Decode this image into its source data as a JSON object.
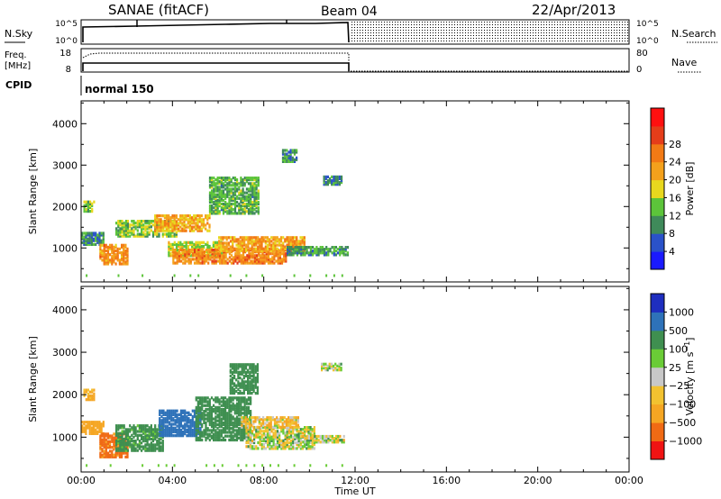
{
  "header": {
    "station": "SANAE (fitACF)",
    "beam": "Beam 04",
    "date": "22/Apr/2013"
  },
  "top_panels": {
    "nsky": {
      "label": "N.Sky",
      "ticks": [
        "10^5",
        "10^0"
      ],
      "right_label": "N.Search",
      "right_ticks": [
        "10^5",
        "10^0"
      ]
    },
    "freq": {
      "label_line1": "Freq.",
      "label_line2": "[MHz]",
      "ticks": [
        "18",
        "8"
      ],
      "right_label": "Nave",
      "right_ticks": [
        "80",
        "0"
      ]
    },
    "cpid": {
      "label": "CPID",
      "value": "normal 150"
    }
  },
  "x_axis": {
    "title": "Time UT",
    "ticks": [
      "00:00",
      "04:00",
      "08:00",
      "12:00",
      "16:00",
      "20:00",
      "00:00"
    ]
  },
  "colors": {
    "power_scale": [
      "#1a1aff",
      "#2a52c9",
      "#3f8a5a",
      "#5cc43a",
      "#e8d81e",
      "#f4a11c",
      "#f27a15",
      "#e53d1a",
      "#ff1010"
    ],
    "velocity_scale": [
      "#f01313",
      "#f06a14",
      "#f5a623",
      "#f2c230",
      "#c8c8c8",
      "#6acc36",
      "#3f8f50",
      "#2e72b9",
      "#1e2ebf"
    ]
  },
  "chart_data": [
    {
      "type": "heatmap",
      "panel": "power",
      "ylabel": "Slant Range [km]",
      "yticks": [
        1000,
        2000,
        3000,
        4000
      ],
      "ylim": [
        180,
        4550
      ],
      "xlim": [
        0,
        24
      ],
      "colorbar": {
        "label": "Power [dB]",
        "ticks": [
          4,
          8,
          12,
          16,
          20,
          24,
          28
        ],
        "range": [
          0,
          32
        ]
      },
      "echo_bands": [
        {
          "t_start": 0.0,
          "t_end": 1.0,
          "r_start": 1050,
          "r_end": 1350,
          "value": 9
        },
        {
          "t_start": 0.1,
          "t_end": 0.6,
          "r_start": 1850,
          "r_end": 2100,
          "value": 13
        },
        {
          "t_start": 0.8,
          "t_end": 2.0,
          "r_start": 580,
          "r_end": 1050,
          "value": 21
        },
        {
          "t_start": 1.5,
          "t_end": 4.2,
          "r_start": 1250,
          "r_end": 1650,
          "value": 13
        },
        {
          "t_start": 3.2,
          "t_end": 5.6,
          "r_start": 1380,
          "r_end": 1780,
          "value": 19
        },
        {
          "t_start": 5.6,
          "t_end": 7.8,
          "r_start": 1800,
          "r_end": 2700,
          "value": 11
        },
        {
          "t_start": 3.8,
          "t_end": 6.2,
          "r_start": 780,
          "r_end": 1100,
          "value": 15
        },
        {
          "t_start": 4.0,
          "t_end": 9.0,
          "r_start": 600,
          "r_end": 950,
          "value": 22
        },
        {
          "t_start": 6.0,
          "t_end": 9.8,
          "r_start": 900,
          "r_end": 1250,
          "value": 20
        },
        {
          "t_start": 9.0,
          "t_end": 11.7,
          "r_start": 800,
          "r_end": 1000,
          "value": 10
        },
        {
          "t_start": 8.8,
          "t_end": 9.4,
          "r_start": 3050,
          "r_end": 3350,
          "value": 9
        },
        {
          "t_start": 10.6,
          "t_end": 11.4,
          "r_start": 2500,
          "r_end": 2700,
          "value": 8
        }
      ]
    },
    {
      "type": "heatmap",
      "panel": "velocity",
      "ylabel": "Slant Range [km]",
      "yticks": [
        1000,
        2000,
        3000,
        4000
      ],
      "ylim": [
        180,
        4550
      ],
      "xlim": [
        0,
        24
      ],
      "colorbar": {
        "label": "Velocity [m s^-1]",
        "ticks": [
          "-1000",
          "-500",
          "-100",
          "-25",
          "25",
          "100",
          "500",
          "1000"
        ]
      },
      "echo_bands": [
        {
          "t_start": 0.0,
          "t_end": 1.0,
          "r_start": 1050,
          "r_end": 1350,
          "value": -300
        },
        {
          "t_start": 0.1,
          "t_end": 0.6,
          "r_start": 1850,
          "r_end": 2100,
          "value": -150
        },
        {
          "t_start": 0.8,
          "t_end": 2.0,
          "r_start": 500,
          "r_end": 1050,
          "value": -600
        },
        {
          "t_start": 1.5,
          "t_end": 3.6,
          "r_start": 650,
          "r_end": 1250,
          "value": 200
        },
        {
          "t_start": 3.4,
          "t_end": 5.2,
          "r_start": 1000,
          "r_end": 1600,
          "value": 800
        },
        {
          "t_start": 5.0,
          "t_end": 7.4,
          "r_start": 900,
          "r_end": 1900,
          "value": 300
        },
        {
          "t_start": 6.5,
          "t_end": 7.7,
          "r_start": 2000,
          "r_end": 2700,
          "value": 250
        },
        {
          "t_start": 7.2,
          "t_end": 10.2,
          "r_start": 700,
          "r_end": 1200,
          "value": 10
        },
        {
          "t_start": 7.0,
          "t_end": 9.5,
          "r_start": 1200,
          "r_end": 1450,
          "value": -80
        },
        {
          "t_start": 9.6,
          "t_end": 11.5,
          "r_start": 850,
          "r_end": 1000,
          "value": 10
        },
        {
          "t_start": 10.5,
          "t_end": 11.4,
          "r_start": 2550,
          "r_end": 2700,
          "value": 10
        }
      ]
    }
  ]
}
